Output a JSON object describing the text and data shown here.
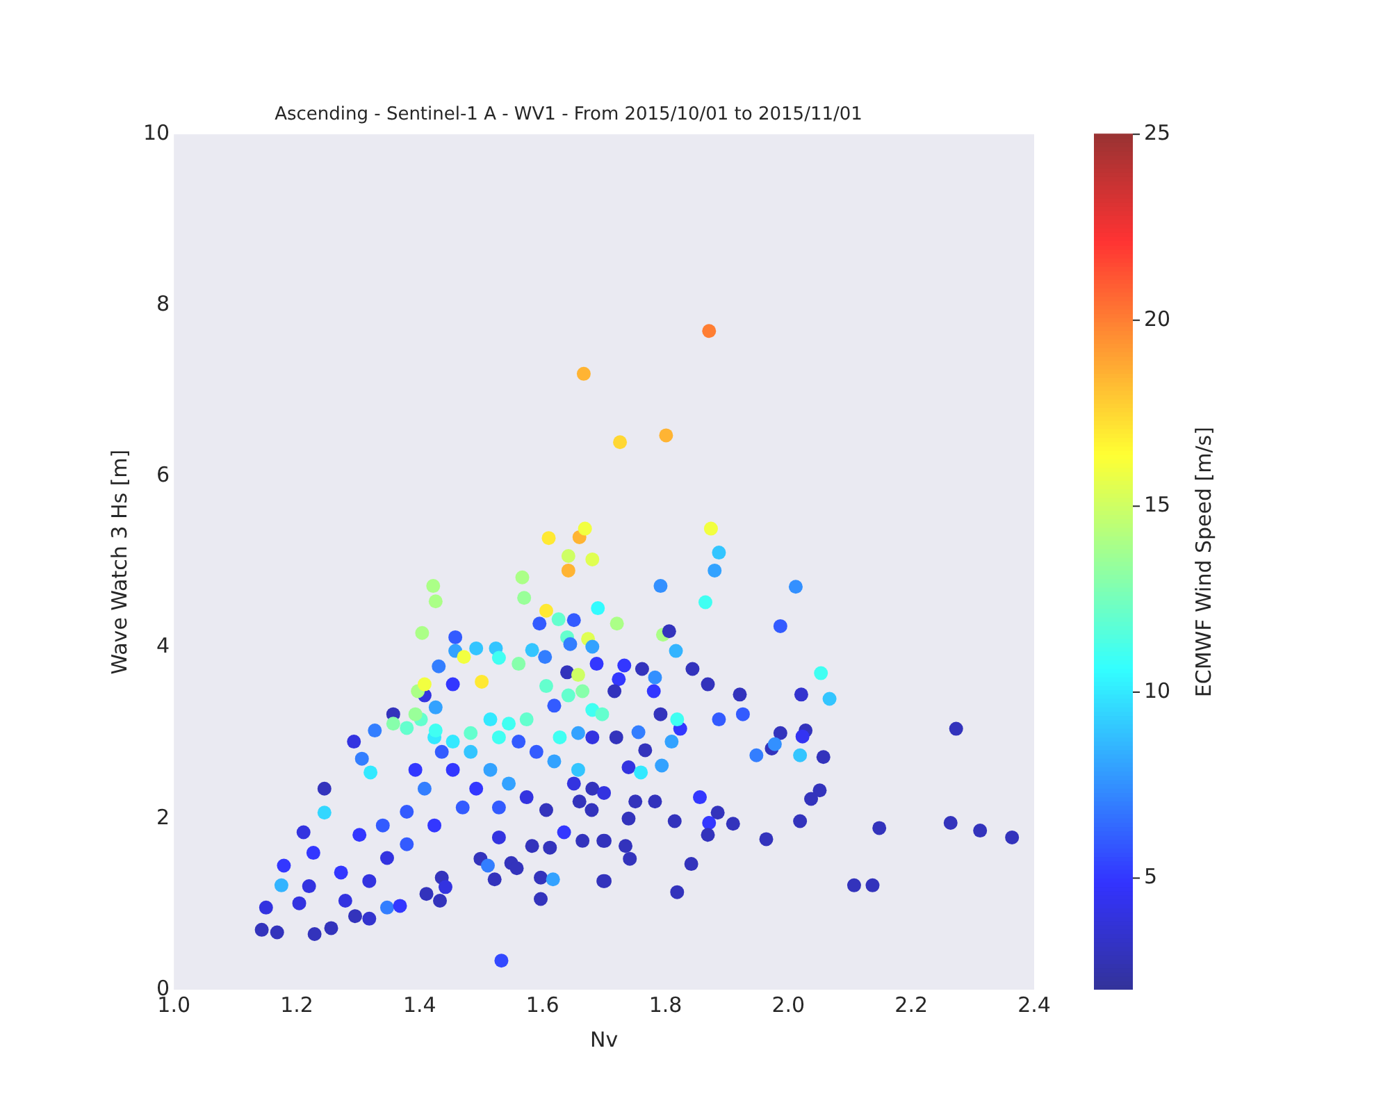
{
  "chart_data": {
    "type": "scatter",
    "title": "Ascending - Sentinel-1 A - WV1 - From 2015/10/01 to 2015/11/01",
    "xlabel": "Nv",
    "ylabel": "Wave Watch 3 Hs [m]",
    "clabel": "ECMWF Wind Speed [m/s]",
    "marker": "circle",
    "xlim": [
      1.0,
      2.4
    ],
    "xticks": [
      {
        "value": 1.0,
        "label": "1.0"
      },
      {
        "value": 1.2,
        "label": "1.2"
      },
      {
        "value": 1.4,
        "label": "1.4"
      },
      {
        "value": 1.6,
        "label": "1.6"
      },
      {
        "value": 1.8,
        "label": "1.8"
      },
      {
        "value": 2.0,
        "label": "2.0"
      },
      {
        "value": 2.2,
        "label": "2.2"
      },
      {
        "value": 2.4,
        "label": "2.4"
      }
    ],
    "ylim": [
      0,
      10
    ],
    "yticks": [
      0,
      2,
      4,
      6,
      8,
      10
    ],
    "clim": [
      2,
      25
    ],
    "cticks": [
      5,
      10,
      15,
      20,
      25
    ],
    "x": [
      1.143,
      1.168,
      1.229,
      1.256,
      1.15,
      1.179,
      1.175,
      1.204,
      1.295,
      1.318,
      1.347,
      1.368,
      1.411,
      1.433,
      1.436,
      1.442,
      1.211,
      1.245,
      1.293,
      1.306,
      1.327,
      1.357,
      1.32,
      1.245,
      1.22,
      1.279,
      1.318,
      1.227,
      1.272,
      1.302,
      1.34,
      1.379,
      1.408,
      1.393,
      1.436,
      1.454,
      1.492,
      1.47,
      1.424,
      1.379,
      1.347,
      1.499,
      1.522,
      1.511,
      1.549,
      1.558,
      1.529,
      1.583,
      1.612,
      1.597,
      1.597,
      1.617,
      1.635,
      1.665,
      1.699,
      1.699,
      1.606,
      1.574,
      1.529,
      1.545,
      1.515,
      1.483,
      1.529,
      1.561,
      1.59,
      1.619,
      1.658,
      1.681,
      1.651,
      1.574,
      1.545,
      1.515,
      1.483,
      1.454,
      1.424,
      1.402,
      1.379,
      1.357,
      1.393,
      1.426,
      1.408,
      1.426,
      1.397,
      1.408,
      1.404,
      1.426,
      1.422,
      1.458,
      1.431,
      1.454,
      1.458,
      1.492,
      1.472,
      1.501,
      1.524,
      1.529,
      1.561,
      1.583,
      1.604,
      1.595,
      1.567,
      1.57,
      1.606,
      1.626,
      1.651,
      1.69,
      1.64,
      1.674,
      1.645,
      1.681,
      1.64,
      1.658,
      1.688,
      1.665,
      1.642,
      1.606,
      1.619,
      1.681,
      1.658,
      1.628,
      1.681,
      1.697,
      1.74,
      1.7,
      1.72,
      1.66,
      1.68,
      1.721,
      1.796,
      1.533,
      1.887,
      1.88,
      1.792,
      2.012,
      1.865,
      1.987,
      1.806,
      1.817,
      1.844,
      2.053,
      2.067,
      2.021,
      1.921,
      1.869,
      1.926,
      1.887,
      1.987,
      2.028,
      2.023,
      2.273,
      1.948,
      1.973,
      1.978,
      2.019,
      2.057,
      2.051,
      2.037,
      1.856,
      1.885,
      1.91,
      2.019,
      2.148,
      2.264,
      2.312,
      2.364,
      1.964,
      1.871,
      1.869,
      1.815,
      2.107,
      2.137,
      1.842,
      1.819,
      1.701,
      1.742,
      1.735,
      1.701,
      1.783,
      1.751,
      1.74,
      1.794,
      1.76,
      1.81,
      1.824,
      1.819,
      1.756,
      1.767,
      1.733,
      1.724,
      1.783,
      1.762,
      1.717,
      1.781,
      1.792,
      1.874,
      1.667,
      1.726,
      1.801,
      1.61,
      1.66,
      1.669,
      1.642,
      1.642,
      1.681,
      1.871
    ],
    "values": [
      0.7,
      0.67,
      0.65,
      0.72,
      0.96,
      1.45,
      1.22,
      1.01,
      0.86,
      0.83,
      0.96,
      0.98,
      1.12,
      1.04,
      1.31,
      1.2,
      1.84,
      2.35,
      2.9,
      2.7,
      3.03,
      3.22,
      2.54,
      2.07,
      1.21,
      1.04,
      1.27,
      1.6,
      1.37,
      1.81,
      1.92,
      2.08,
      2.35,
      2.57,
      2.78,
      2.57,
      2.35,
      2.13,
      1.92,
      1.7,
      1.54,
      1.53,
      1.29,
      1.45,
      1.48,
      1.42,
      1.78,
      1.68,
      1.66,
      1.31,
      1.06,
      1.29,
      1.84,
      1.74,
      1.27,
      1.74,
      2.1,
      2.25,
      2.13,
      2.41,
      2.57,
      2.78,
      2.95,
      2.9,
      2.78,
      2.67,
      2.57,
      2.35,
      2.41,
      3.16,
      3.11,
      3.16,
      3.0,
      2.9,
      2.95,
      3.16,
      3.06,
      3.11,
      3.22,
      3.03,
      3.44,
      3.3,
      3.49,
      3.57,
      4.17,
      4.54,
      4.72,
      4.12,
      3.78,
      3.57,
      3.96,
      3.99,
      3.89,
      3.6,
      3.99,
      3.88,
      3.81,
      3.97,
      3.89,
      4.28,
      4.82,
      4.58,
      4.43,
      4.33,
      4.32,
      4.46,
      4.12,
      4.1,
      4.04,
      4.01,
      3.71,
      3.68,
      3.81,
      3.49,
      3.44,
      3.55,
      3.32,
      3.27,
      3.0,
      2.95,
      2.95,
      3.22,
      2.6,
      2.3,
      2.95,
      2.2,
      2.1,
      4.28,
      4.15,
      0.34,
      5.11,
      4.9,
      4.72,
      4.71,
      4.53,
      4.25,
      4.19,
      3.96,
      3.75,
      3.7,
      3.4,
      3.45,
      3.45,
      3.57,
      3.22,
      3.16,
      3.0,
      3.03,
      2.96,
      3.05,
      2.74,
      2.82,
      2.87,
      2.74,
      2.72,
      2.33,
      2.23,
      2.25,
      2.07,
      1.94,
      1.97,
      1.89,
      1.95,
      1.86,
      1.78,
      1.76,
      1.95,
      1.81,
      1.97,
      1.22,
      1.22,
      1.47,
      1.14,
      1.27,
      1.53,
      1.68,
      1.74,
      2.2,
      2.2,
      2.0,
      2.62,
      2.54,
      2.9,
      3.05,
      3.16,
      3.01,
      2.8,
      3.79,
      3.63,
      3.65,
      3.75,
      3.49,
      3.49,
      3.22,
      5.39,
      7.2,
      6.4,
      6.48,
      5.28,
      5.29,
      5.39,
      4.9,
      5.07,
      5.03,
      7.7
    ],
    "cvalues": [
      3,
      3,
      3,
      3,
      4,
      5,
      8.5,
      4,
      3,
      3.5,
      7,
      5,
      3,
      3,
      3,
      4,
      4,
      3,
      4,
      7,
      7,
      3,
      10,
      9.5,
      4,
      4,
      4,
      5,
      5,
      5,
      6,
      6,
      7,
      5,
      6,
      5,
      5,
      6,
      5,
      6,
      4,
      3,
      3,
      7,
      3,
      3,
      4,
      3,
      3,
      3,
      3,
      8,
      5,
      3,
      3,
      3,
      3,
      4,
      6,
      8,
      8,
      9,
      11,
      6,
      6,
      8,
      9,
      3,
      4,
      12,
      11,
      10,
      12,
      10,
      10,
      12,
      12,
      13,
      13.5,
      11,
      4,
      8,
      14,
      16,
      14,
      14,
      14,
      6,
      7,
      5,
      8,
      9,
      16,
      17,
      9,
      11,
      13,
      9,
      7,
      6,
      14,
      13.5,
      17,
      12,
      6,
      10.5,
      12,
      15.5,
      7,
      8,
      3,
      15,
      5,
      13,
      12,
      12,
      6,
      11,
      8,
      11,
      4,
      12,
      4,
      4,
      3,
      3,
      3,
      14,
      14,
      5.5,
      9,
      8,
      7.5,
      7.5,
      11,
      6,
      3,
      8.5,
      3,
      11,
      9,
      3.5,
      3,
      3,
      6,
      6,
      3,
      3,
      4.5,
      3,
      7,
      3,
      7.5,
      9,
      3,
      3,
      3,
      5,
      3,
      3,
      3,
      3,
      3,
      3,
      3,
      3,
      5,
      3,
      3,
      3,
      3,
      3,
      3,
      3,
      3,
      3,
      3,
      3,
      3,
      3,
      8,
      10,
      8,
      5,
      11,
      7,
      3,
      5,
      5,
      7.5,
      3,
      3,
      5,
      3,
      16,
      18.5,
      17.5,
      18.5,
      17,
      18.5,
      16,
      18.5,
      15,
      15.5,
      20
    ]
  }
}
